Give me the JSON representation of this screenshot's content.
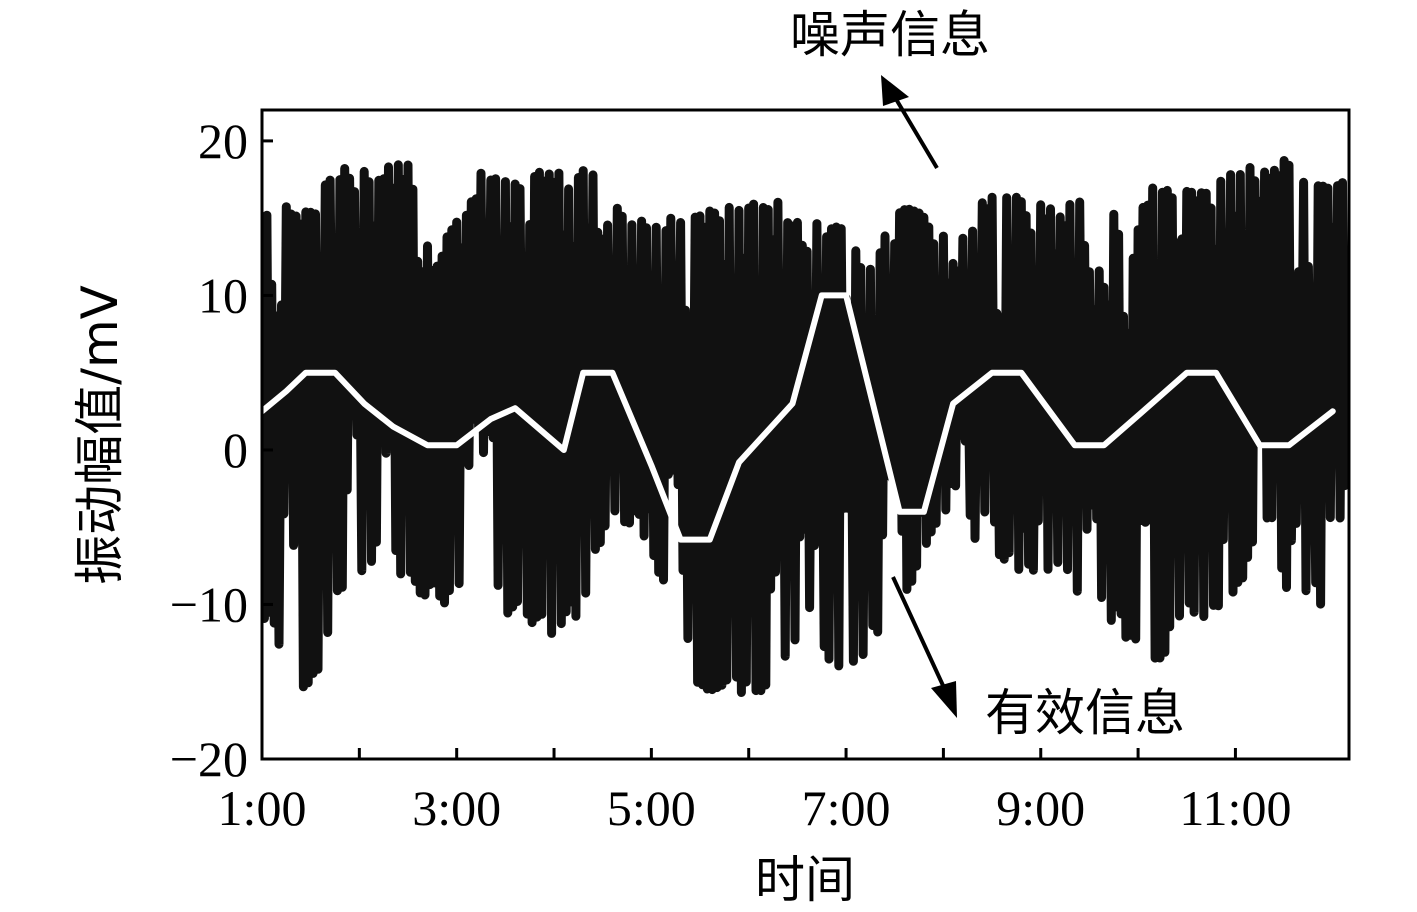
{
  "chart_data": {
    "type": "line",
    "title": "",
    "xlabel": "时间",
    "ylabel": "振动幅值/mV",
    "xlim": [
      "1:00",
      "12:10"
    ],
    "ylim": [
      -20,
      22
    ],
    "y_ticks": [
      20,
      10,
      0,
      -10,
      -20
    ],
    "y_tick_labels": [
      "20",
      "10",
      "0",
      "−10",
      "−20"
    ],
    "x_ticks": [
      "1:00",
      "3:00",
      "5:00",
      "7:00",
      "9:00",
      "11:00"
    ],
    "x_minor_ticks": [
      "2:00",
      "4:00",
      "6:00",
      "8:00",
      "10:00"
    ],
    "grid": false,
    "legend": "none",
    "annotations": [
      {
        "text": "噪声信息",
        "points_to_series": "噪声信息"
      },
      {
        "text": "有效信息",
        "points_to_series": "有效信息"
      }
    ],
    "series": [
      {
        "name": "有效信息",
        "color": "#ffffff",
        "points": [
          [
            "1:00",
            2.5
          ],
          [
            "1:15",
            3.8
          ],
          [
            "1:27",
            5.0
          ],
          [
            "1:45",
            5.0
          ],
          [
            "2:03",
            3.0
          ],
          [
            "2:21",
            1.5
          ],
          [
            "2:42",
            0.3
          ],
          [
            "3:00",
            0.3
          ],
          [
            "3:21",
            2.0
          ],
          [
            "3:36",
            2.7
          ],
          [
            "4:06",
            0.0
          ],
          [
            "4:12",
            2.5
          ],
          [
            "4:18",
            5.0
          ],
          [
            "4:36",
            5.0
          ],
          [
            "5:00",
            -1.0
          ],
          [
            "5:18",
            -5.8
          ],
          [
            "5:36",
            -5.8
          ],
          [
            "5:54",
            -0.8
          ],
          [
            "6:27",
            3.0
          ],
          [
            "6:45",
            10.0
          ],
          [
            "7:00",
            10.0
          ],
          [
            "7:33",
            -4.0
          ],
          [
            "7:48",
            -4.0
          ],
          [
            "8:06",
            3.0
          ],
          [
            "8:30",
            5.0
          ],
          [
            "8:48",
            5.0
          ],
          [
            "9:21",
            0.3
          ],
          [
            "9:39",
            0.3
          ],
          [
            "10:03",
            2.5
          ],
          [
            "10:30",
            5.0
          ],
          [
            "10:48",
            5.0
          ],
          [
            "11:15",
            0.3
          ],
          [
            "11:33",
            0.3
          ],
          [
            "12:00",
            2.5
          ]
        ]
      },
      {
        "name": "噪声信息",
        "color": "#111111",
        "interval_min": 1.5,
        "max_envelope": [
          [
            "1:00",
            15.8
          ],
          [
            "1:30",
            15.8
          ],
          [
            "1:45",
            18.5
          ],
          [
            "2:30",
            18.5
          ],
          [
            "2:45",
            12.5
          ],
          [
            "3:15",
            18.0
          ],
          [
            "3:51",
            18.0
          ],
          [
            "4:15",
            18.5
          ],
          [
            "4:30",
            18.5
          ],
          [
            "4:48",
            15.0
          ],
          [
            "5:15",
            15.0
          ],
          [
            "5:48",
            16.0
          ],
          [
            "6:18",
            16.5
          ],
          [
            "6:36",
            14.0
          ],
          [
            "6:45",
            15.0
          ],
          [
            "7:00",
            15.0
          ],
          [
            "7:15",
            12.0
          ],
          [
            "7:30",
            16.5
          ],
          [
            "8:06",
            14.0
          ],
          [
            "8:30",
            17.0
          ],
          [
            "9:00",
            16.0
          ],
          [
            "9:30",
            16.5
          ],
          [
            "10:00",
            15.0
          ],
          [
            "10:12",
            18.0
          ],
          [
            "10:30",
            17.0
          ],
          [
            "11:00",
            18.0
          ],
          [
            "11:30",
            19.0
          ],
          [
            "11:48",
            18.0
          ],
          [
            "12:10",
            18.0
          ]
        ],
        "min_envelope": [
          [
            "1:00",
            -11.0
          ],
          [
            "1:30",
            -16.5
          ],
          [
            "1:45",
            -10.0
          ],
          [
            "2:15",
            -7.0
          ],
          [
            "2:45",
            -10.0
          ],
          [
            "3:21",
            -10.0
          ],
          [
            "3:57",
            -12.0
          ],
          [
            "4:15",
            -11.0
          ],
          [
            "4:36",
            -4.0
          ],
          [
            "5:00",
            -6.5
          ],
          [
            "5:30",
            -16.0
          ],
          [
            "5:54",
            -16.0
          ],
          [
            "6:15",
            -16.5
          ],
          [
            "6:36",
            -11.0
          ],
          [
            "6:57",
            -15.0
          ],
          [
            "7:15",
            -13.0
          ],
          [
            "7:45",
            -8.0
          ],
          [
            "8:06",
            -3.0
          ],
          [
            "8:30",
            -8.0
          ],
          [
            "9:06",
            -8.0
          ],
          [
            "9:30",
            -10.0
          ],
          [
            "10:12",
            -14.0
          ],
          [
            "10:33",
            -11.0
          ],
          [
            "10:57",
            -11.0
          ],
          [
            "11:15",
            -6.0
          ],
          [
            "11:33",
            -10.0
          ],
          [
            "11:57",
            -10.0
          ],
          [
            "12:10",
            -9.0
          ]
        ],
        "mid_lobe": [
          [
            "1:00",
            4.0
          ],
          [
            "1:30",
            7.0
          ],
          [
            "2:00",
            9.0
          ],
          [
            "2:30",
            10.0
          ],
          [
            "3:00",
            9.0
          ],
          [
            "3:30",
            9.0
          ],
          [
            "4:00",
            8.0
          ],
          [
            "4:30",
            5.0
          ],
          [
            "5:00",
            2.0
          ],
          [
            "6:00",
            3.0
          ],
          [
            "7:00",
            5.0
          ],
          [
            "8:00",
            3.0
          ],
          [
            "9:00",
            4.0
          ],
          [
            "10:00",
            4.0
          ],
          [
            "11:00",
            4.0
          ],
          [
            "12:10",
            4.0
          ]
        ]
      }
    ]
  }
}
